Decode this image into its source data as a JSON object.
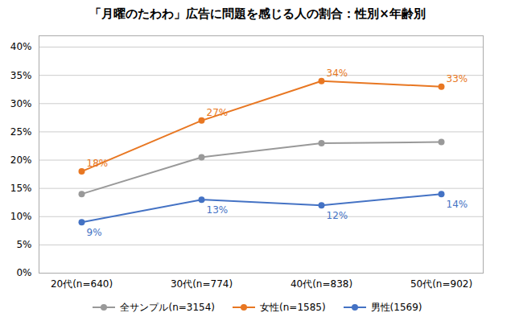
{
  "chart_data": {
    "type": "line",
    "title": "「月曜のたわわ」広告に問題を感じる人の割合：性別×年齢別",
    "categories": [
      "20代(n=640)",
      "30代(n=774)",
      "40代(n=838)",
      "50代(n=902)"
    ],
    "series": [
      {
        "name": "全サンプル(n=3154)",
        "color": "#999999",
        "marker": "circle",
        "values": [
          0.14,
          0.205,
          0.23,
          0.232
        ]
      },
      {
        "name": "女性(n=1585)",
        "color": "#E87722",
        "marker": "circle",
        "values": [
          0.18,
          0.27,
          0.34,
          0.33
        ],
        "value_labels": [
          "18%",
          "27%",
          "34%",
          "33%"
        ]
      },
      {
        "name": "男性(1569)",
        "color": "#4472C4",
        "marker": "circle",
        "values": [
          0.09,
          0.13,
          0.12,
          0.14
        ],
        "value_labels": [
          "9%",
          "13%",
          "12%",
          "14%"
        ]
      }
    ],
    "ylim": [
      0,
      0.42
    ],
    "yticks": [
      {
        "value": 0.0,
        "label": "0%"
      },
      {
        "value": 0.05,
        "label": "5%"
      },
      {
        "value": 0.1,
        "label": "10%"
      },
      {
        "value": 0.15,
        "label": "15%"
      },
      {
        "value": 0.2,
        "label": "20%"
      },
      {
        "value": 0.25,
        "label": "25%"
      },
      {
        "value": 0.3,
        "label": "30%"
      },
      {
        "value": 0.35,
        "label": "35%"
      },
      {
        "value": 0.4,
        "label": "40%"
      }
    ],
    "grid": true,
    "legend": "bottom"
  }
}
